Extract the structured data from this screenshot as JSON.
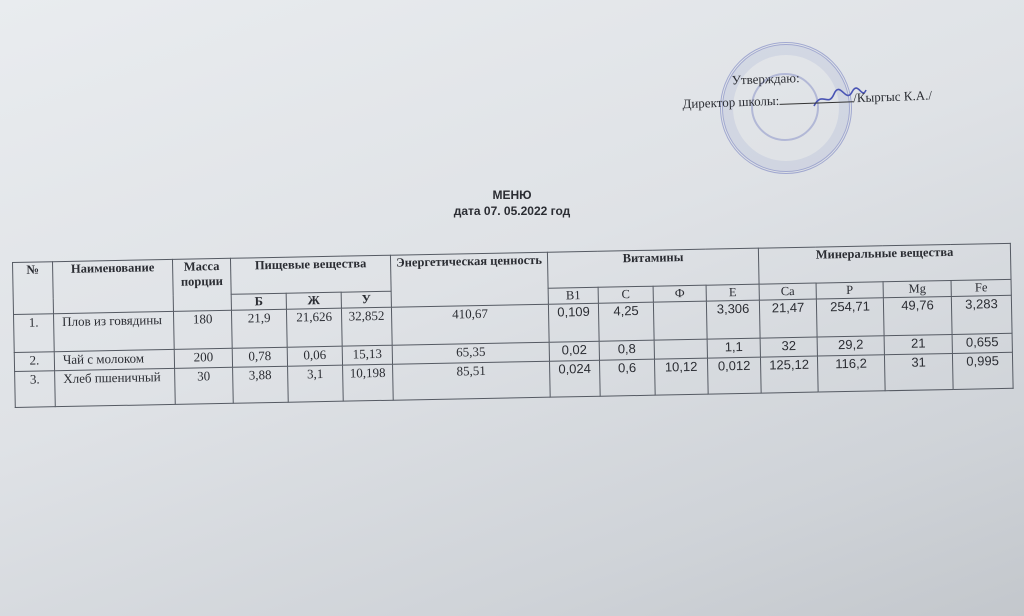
{
  "approval": {
    "line1": "Утверждаю:",
    "line2": "Директор школы:",
    "signature_name": "/Кыргыс К.А./"
  },
  "document": {
    "title": "МЕНЮ",
    "date": "дата 07. 05.2022 год"
  },
  "table": {
    "headers": {
      "no": "№",
      "name": "Наименование",
      "mass": "Масса порции",
      "nutrients": "Пищевые вещества",
      "energy": "Энергетическая ценность",
      "vitamins": "Витамины",
      "minerals": "Минеральные вещества"
    },
    "subheaders": [
      "Б",
      "Ж",
      "У",
      "B1",
      "C",
      "Ф",
      "E",
      "Ca",
      "P",
      "Mg",
      "Fe"
    ],
    "rows": [
      {
        "no": "1.",
        "name": "Плов из говядины",
        "mass": "180",
        "b": "21,9",
        "zh": "21,626",
        "u": "32,852",
        "energy": "410,67",
        "b1": "0,109",
        "c": "4,25",
        "f": "",
        "e": "3,306",
        "ca": "21,47",
        "p": "254,71",
        "mg": "49,76",
        "fe": "3,283"
      },
      {
        "no": "2.",
        "name": "Чай с молоком",
        "mass": "200",
        "b": "0,78",
        "zh": "0,06",
        "u": "15,13",
        "energy": "65,35",
        "b1": "0,02",
        "c": "0,8",
        "f": "",
        "e": "1,1",
        "ca": "32",
        "p": "29,2",
        "mg": "21",
        "fe": "0,655"
      },
      {
        "no": "3.",
        "name": "Хлеб пшеничный",
        "mass": "30",
        "b": "3,88",
        "zh": "3,1",
        "u": "10,198",
        "energy": "85,51",
        "b1": "0,024",
        "c": "0,6",
        "f": "10,12",
        "e": "0,012",
        "ca": "125,12",
        "p": "116,2",
        "mg": "31",
        "fe": "0,995"
      }
    ]
  }
}
